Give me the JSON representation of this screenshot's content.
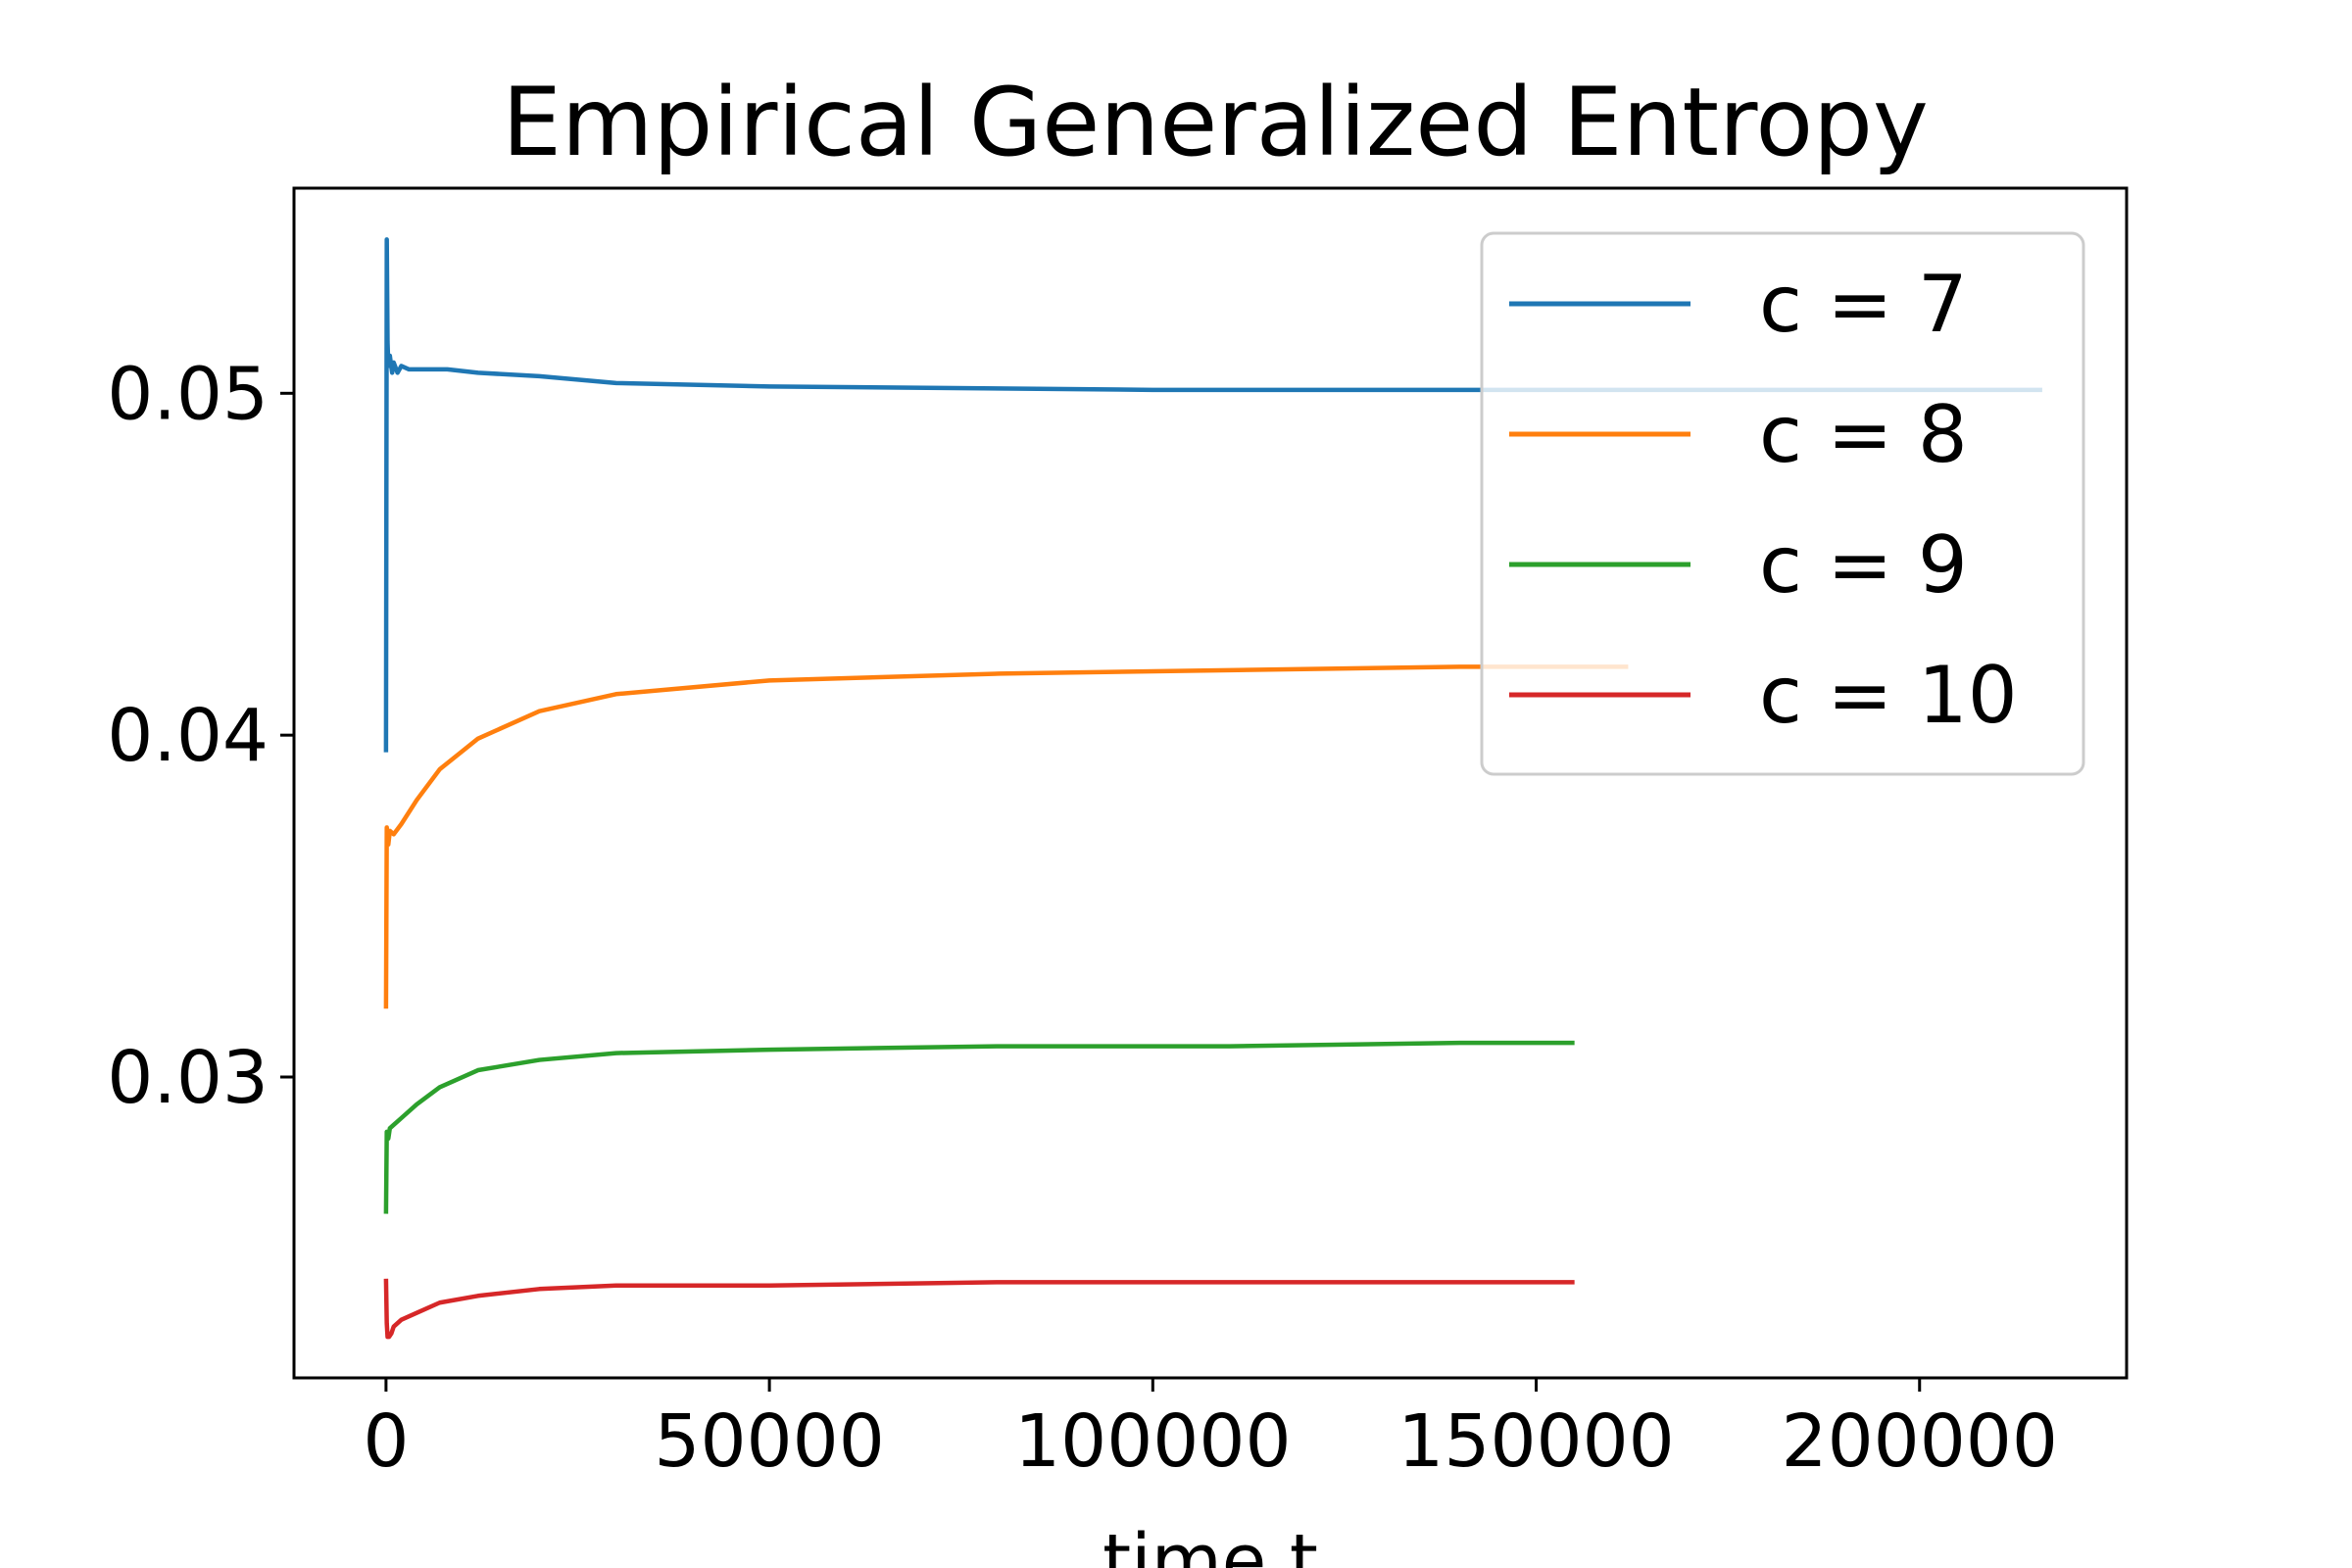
{
  "chart_data": {
    "type": "line",
    "title": "Empirical Generalized Entropy",
    "xlabel": "time t",
    "ylabel": "",
    "xlim": [
      -12000,
      227000
    ],
    "ylim": [
      0.0212,
      0.056
    ],
    "xticks": [
      0,
      50000,
      100000,
      150000,
      200000
    ],
    "xtick_labels": [
      "0",
      "50000",
      "100000",
      "150000",
      "200000"
    ],
    "yticks": [
      0.03,
      0.04,
      0.05
    ],
    "ytick_labels": [
      "0.03",
      "0.04",
      "0.05"
    ],
    "grid": false,
    "legend": {
      "position": "upper-right"
    },
    "series": [
      {
        "name": "c = 7",
        "color": "#1f77b4",
        "x": [
          0,
          100,
          200,
          300,
          500,
          800,
          1000,
          1500,
          2000,
          3000,
          5000,
          8000,
          12000,
          20000,
          30000,
          50000,
          100000,
          150000,
          200000,
          216000
        ],
        "y": [
          0.0395,
          0.0545,
          0.0515,
          0.0508,
          0.0511,
          0.0506,
          0.0509,
          0.0506,
          0.0508,
          0.0507,
          0.0507,
          0.0507,
          0.0506,
          0.0505,
          0.0503,
          0.0502,
          0.0501,
          0.0501,
          0.0501,
          0.0501
        ]
      },
      {
        "name": "c = 8",
        "color": "#ff7f0e",
        "x": [
          0,
          100,
          300,
          500,
          1000,
          2000,
          4000,
          7000,
          12000,
          20000,
          30000,
          50000,
          80000,
          110000,
          140000,
          162000
        ],
        "y": [
          0.032,
          0.0373,
          0.0368,
          0.0372,
          0.0371,
          0.0374,
          0.0381,
          0.039,
          0.0399,
          0.0407,
          0.0412,
          0.0416,
          0.0418,
          0.0419,
          0.042,
          0.042
        ]
      },
      {
        "name": "c = 9",
        "color": "#2ca02c",
        "x": [
          0,
          100,
          300,
          500,
          1000,
          2000,
          4000,
          7000,
          12000,
          20000,
          30000,
          50000,
          80000,
          110000,
          140000,
          155000
        ],
        "y": [
          0.026,
          0.0284,
          0.0282,
          0.0285,
          0.0286,
          0.0288,
          0.0292,
          0.0297,
          0.0302,
          0.0305,
          0.0307,
          0.0308,
          0.0309,
          0.0309,
          0.031,
          0.031
        ]
      },
      {
        "name": "c = 10",
        "color": "#d62728",
        "x": [
          0,
          100,
          200,
          400,
          700,
          1000,
          2000,
          4000,
          7000,
          12000,
          20000,
          30000,
          50000,
          80000,
          110000,
          140000,
          155000
        ],
        "y": [
          0.0241,
          0.0228,
          0.0224,
          0.0224,
          0.0225,
          0.0227,
          0.0229,
          0.0231,
          0.0234,
          0.0236,
          0.0238,
          0.0239,
          0.0239,
          0.024,
          0.024,
          0.024,
          0.024
        ]
      }
    ]
  }
}
